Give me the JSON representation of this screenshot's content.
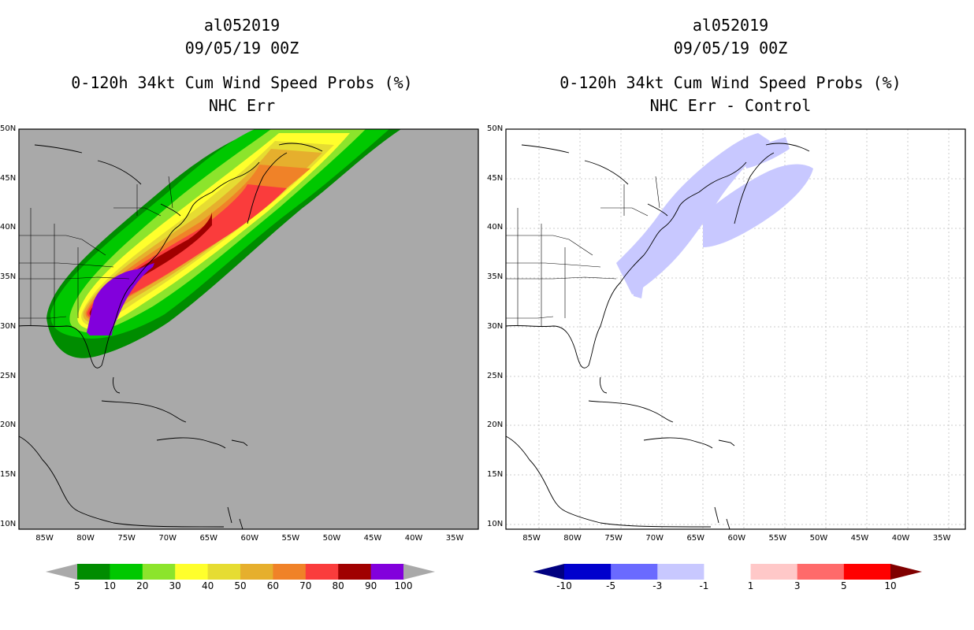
{
  "left_panel": {
    "storm_id": "al052019",
    "datetime": "09/05/19 00Z",
    "product": "0-120h 34kt Cum Wind Speed Probs (%)",
    "subtitle": "NHC Err",
    "background": "#a9a9a9",
    "colorbar": {
      "labels": [
        "5",
        "10",
        "20",
        "30",
        "40",
        "50",
        "60",
        "70",
        "80",
        "90",
        "100"
      ],
      "under_color": "#a9a9a9",
      "over_color": "#a9a9a9",
      "colors": [
        "#008c00",
        "#00c800",
        "#8ce42c",
        "#ffff2c",
        "#e6dc32",
        "#e6af2d",
        "#f08228",
        "#fa3c3c",
        "#a00000",
        "#8200dc"
      ]
    }
  },
  "right_panel": {
    "storm_id": "al052019",
    "datetime": "09/05/19 00Z",
    "product": "0-120h 34kt Cum Wind Speed Probs (%)",
    "subtitle": "NHC Err - Control",
    "background": "#ffffff",
    "colorbar": {
      "labels": [
        "-10",
        "-5",
        "-3",
        "-1",
        "1",
        "3",
        "5",
        "10"
      ],
      "under_color": "#000080",
      "over_color": "#800000",
      "colors": [
        "#0000cd",
        "#6a6aff",
        "#c8c8ff",
        "#ffffff",
        "#ffc8c8",
        "#ff6a6a",
        "#ff0000"
      ]
    }
  },
  "axes": {
    "lon_labels": [
      "85W",
      "80W",
      "75W",
      "70W",
      "65W",
      "60W",
      "55W",
      "50W",
      "45W",
      "40W",
      "35W"
    ],
    "lat_labels": [
      "10N",
      "15N",
      "20N",
      "25N",
      "30N",
      "35N",
      "40N",
      "45N",
      "50N"
    ],
    "lon_range": [
      -88,
      -32
    ],
    "lat_range": [
      9.5,
      50
    ]
  }
}
